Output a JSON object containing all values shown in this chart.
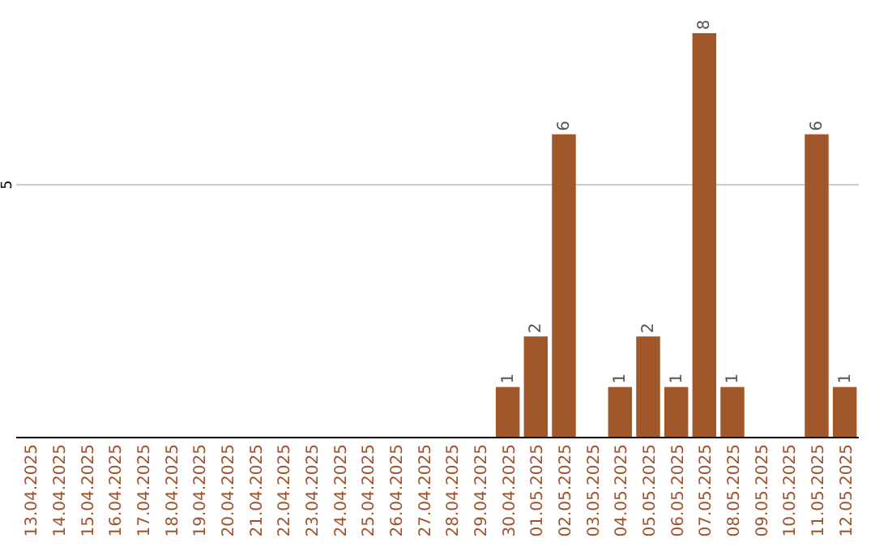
{
  "chart_data": {
    "type": "bar",
    "categories": [
      "13.04.2025",
      "14.04.2025",
      "15.04.2025",
      "16.04.2025",
      "17.04.2025",
      "18.04.2025",
      "19.04.2025",
      "20.04.2025",
      "21.04.2025",
      "22.04.2025",
      "23.04.2025",
      "24.04.2025",
      "25.04.2025",
      "26.04.2025",
      "27.04.2025",
      "28.04.2025",
      "29.04.2025",
      "30.04.2025",
      "01.05.2025",
      "02.05.2025",
      "03.05.2025",
      "04.05.2025",
      "05.05.2025",
      "06.05.2025",
      "07.05.2025",
      "08.05.2025",
      "09.05.2025",
      "10.05.2025",
      "11.05.2025",
      "12.05.2025"
    ],
    "values": [
      null,
      null,
      null,
      null,
      null,
      null,
      null,
      null,
      null,
      null,
      null,
      null,
      null,
      null,
      null,
      null,
      null,
      1,
      2,
      6,
      null,
      1,
      2,
      1,
      8,
      1,
      null,
      null,
      6,
      1
    ],
    "data_labels": true,
    "color": "#a0582a",
    "ref_lines": [
      {
        "axis": "y",
        "value": 5,
        "label": "5",
        "color": "#cccccc"
      }
    ]
  }
}
